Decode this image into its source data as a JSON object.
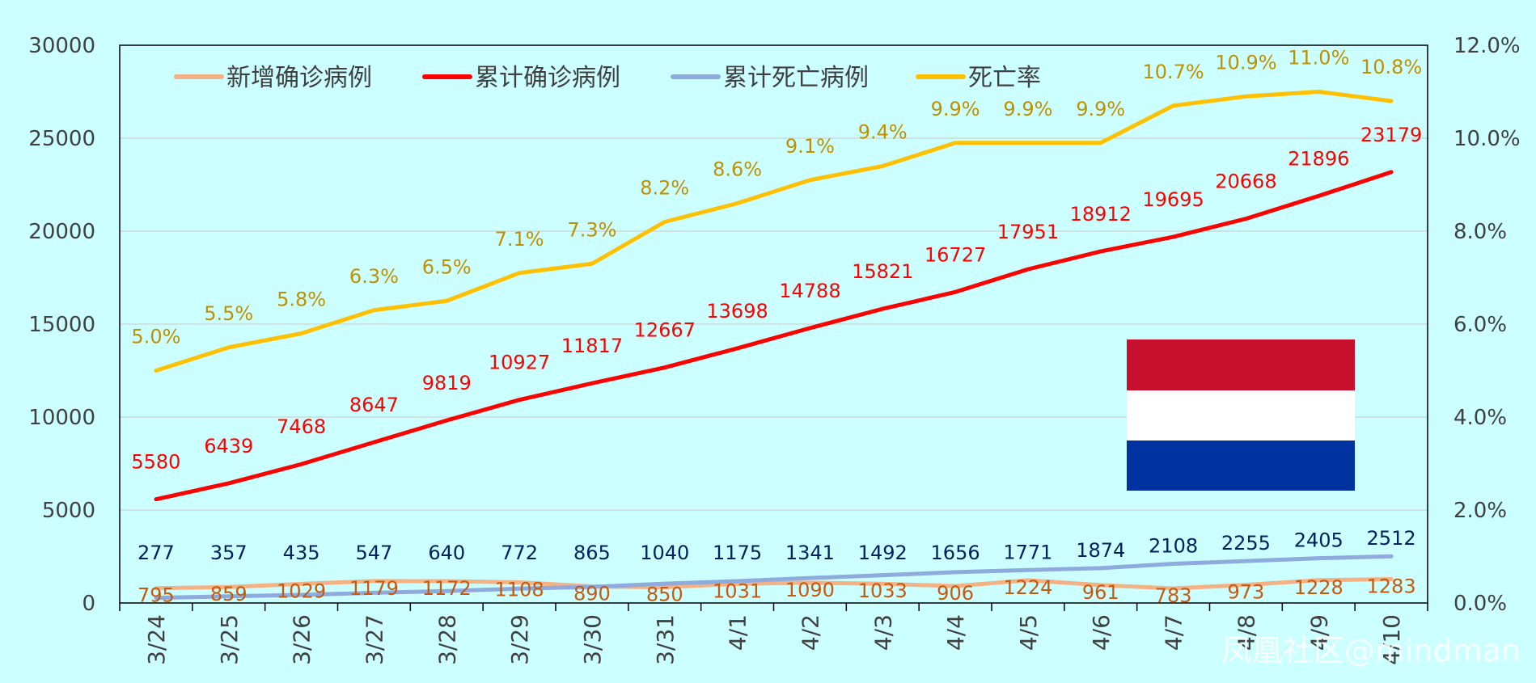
{
  "chart_data": {
    "type": "line",
    "categories": [
      "3/24",
      "3/25",
      "3/26",
      "3/27",
      "3/28",
      "3/29",
      "3/30",
      "3/31",
      "4/1",
      "4/2",
      "4/3",
      "4/4",
      "4/5",
      "4/6",
      "4/7",
      "4/8",
      "4/9",
      "4/10"
    ],
    "series": [
      {
        "name": "新增确诊病例",
        "axis": "left",
        "color": "#f4b183",
        "label_color": "#c55a11",
        "values": [
          795,
          859,
          1029,
          1179,
          1172,
          1108,
          890,
          850,
          1031,
          1090,
          1033,
          906,
          1224,
          961,
          783,
          973,
          1228,
          1283
        ],
        "labels": [
          "795",
          "859",
          "1029",
          "1179",
          "1172",
          "1108",
          "890",
          "850",
          "1031",
          "1090",
          "1033",
          "906",
          "1224",
          "961",
          "783",
          "973",
          "1228",
          "1283"
        ]
      },
      {
        "name": "累计确诊病例",
        "axis": "left",
        "color": "#ff0000",
        "label_color": "#ff0000",
        "values": [
          5580,
          6439,
          7468,
          8647,
          9819,
          10927,
          11817,
          12667,
          13698,
          14788,
          15821,
          16727,
          17951,
          18912,
          19695,
          20668,
          21896,
          23179
        ],
        "labels": [
          "5580",
          "6439",
          "7468",
          "8647",
          "9819",
          "10927",
          "11817",
          "12667",
          "13698",
          "14788",
          "15821",
          "16727",
          "17951",
          "18912",
          "19695",
          "20668",
          "21896",
          "23179"
        ]
      },
      {
        "name": "累计死亡病例",
        "axis": "left",
        "color": "#8faadc",
        "label_color": "#002060",
        "values": [
          277,
          357,
          435,
          547,
          640,
          772,
          865,
          1040,
          1175,
          1341,
          1492,
          1656,
          1771,
          1874,
          2108,
          2255,
          2405,
          2512
        ],
        "labels": [
          "277",
          "357",
          "435",
          "547",
          "640",
          "772",
          "865",
          "1040",
          "1175",
          "1341",
          "1492",
          "1656",
          "1771",
          "1874",
          "2108",
          "2255",
          "2405",
          "2512"
        ]
      },
      {
        "name": "死亡率",
        "axis": "right",
        "color": "#ffc000",
        "label_color": "#bf9000",
        "values": [
          5.0,
          5.5,
          5.8,
          6.3,
          6.5,
          7.1,
          7.3,
          8.2,
          8.6,
          9.1,
          9.4,
          9.9,
          9.9,
          9.9,
          10.7,
          10.9,
          11.0,
          10.8
        ],
        "labels": [
          "5.0%",
          "5.5%",
          "5.8%",
          "6.3%",
          "6.5%",
          "7.1%",
          "7.3%",
          "8.2%",
          "8.6%",
          "9.1%",
          "9.4%",
          "9.9%",
          "9.9%",
          "9.9%",
          "10.7%",
          "10.9%",
          "11.0%",
          "10.8%"
        ]
      }
    ],
    "y_left": {
      "range": [
        0,
        30000
      ],
      "ticks": [
        "0",
        "5000",
        "10000",
        "15000",
        "20000",
        "25000",
        "30000"
      ]
    },
    "y_right": {
      "range": [
        0,
        12
      ],
      "ticks": [
        "0.0%",
        "2.0%",
        "4.0%",
        "6.0%",
        "8.0%",
        "10.0%",
        "12.0%"
      ]
    },
    "grid": true,
    "legend_position": "top"
  },
  "flag": {
    "name": "Netherlands flag",
    "colors": [
      "#c8102e",
      "#ffffff",
      "#0033a0"
    ]
  },
  "watermark": "凤凰社区@mindman",
  "colors": {
    "background": "#ccffff",
    "plot_background": "#ccffff",
    "gridline": "#d0d0d0",
    "axis": "#000000"
  }
}
